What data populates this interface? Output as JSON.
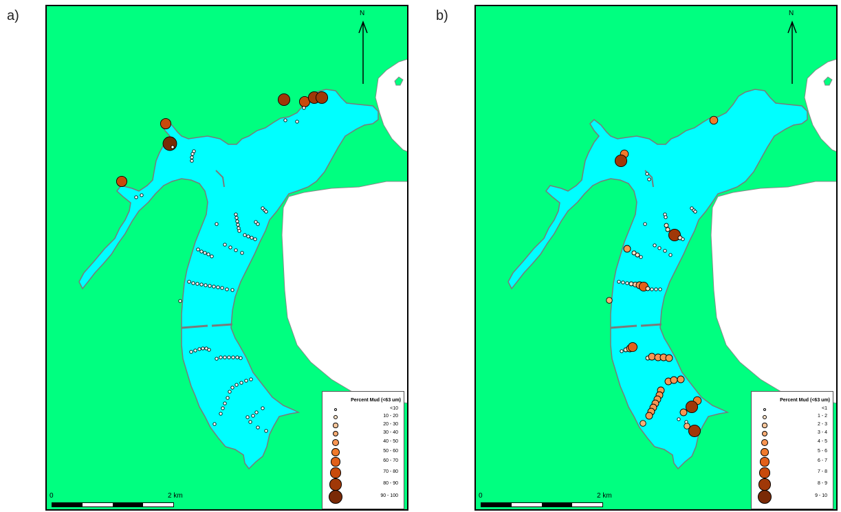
{
  "panels": [
    {
      "letter": "a)",
      "north": "N",
      "scale": {
        "start": "0",
        "end": "2 km"
      },
      "legend": {
        "title": "Percent Mud (<63 um)",
        "classes": [
          "<10",
          "10 - 20",
          "20 - 30",
          "30 - 40",
          "40 - 50",
          "50 - 60",
          "60 - 70",
          "70 - 80",
          "80 - 90",
          "90 - 100"
        ]
      }
    },
    {
      "letter": "b)",
      "north": "N",
      "scale": {
        "start": "0",
        "end": "2 km"
      },
      "legend": {
        "title": "Percent Mud (<63 um)",
        "classes": [
          "<1",
          "1 - 2",
          "2 - 3",
          "3 - 4",
          "4 - 5",
          "5 - 6",
          "6 - 7",
          "7 - 8",
          "8 - 9",
          "9 - 10"
        ]
      }
    }
  ],
  "class_colors": [
    "#ffffff",
    "#fde3c8",
    "#fbc79b",
    "#f9ad75",
    "#f79553",
    "#f07a2c",
    "#e2601a",
    "#c84a0c",
    "#a03808",
    "#7a2a06"
  ],
  "land_color": "#00ff80",
  "water_color": "#00ffff",
  "sea_color": "#ffffff",
  "samples_a": [
    [
      411,
      143,
      8
    ],
    [
      441,
      146,
      7
    ],
    [
      455,
      140,
      8
    ],
    [
      466,
      140,
      8
    ],
    [
      440,
      155,
      0
    ],
    [
      413,
      173,
      0
    ],
    [
      430,
      175,
      0
    ],
    [
      239,
      178,
      7
    ],
    [
      245,
      207,
      9
    ],
    [
      249,
      212,
      0
    ],
    [
      280,
      218,
      0
    ],
    [
      278,
      222,
      0
    ],
    [
      277,
      227,
      0
    ],
    [
      277,
      232,
      0
    ],
    [
      175,
      262,
      7
    ],
    [
      196,
      285,
      0
    ],
    [
      204,
      282,
      0
    ],
    [
      341,
      310,
      0
    ],
    [
      342,
      315,
      0
    ],
    [
      343,
      320,
      0
    ],
    [
      344,
      325,
      0
    ],
    [
      345,
      330,
      0
    ],
    [
      346,
      334,
      0
    ],
    [
      380,
      301,
      0
    ],
    [
      383,
      304,
      0
    ],
    [
      385,
      306,
      0
    ],
    [
      313,
      324,
      0
    ],
    [
      370,
      321,
      0
    ],
    [
      373,
      324,
      0
    ],
    [
      354,
      340,
      0
    ],
    [
      359,
      342,
      0
    ],
    [
      364,
      344,
      0
    ],
    [
      369,
      346,
      0
    ],
    [
      325,
      354,
      0
    ],
    [
      333,
      358,
      0
    ],
    [
      341,
      362,
      0
    ],
    [
      350,
      366,
      0
    ],
    [
      286,
      361,
      0
    ],
    [
      291,
      364,
      0
    ],
    [
      296,
      366,
      0
    ],
    [
      301,
      368,
      0
    ],
    [
      306,
      371,
      0
    ],
    [
      273,
      408,
      0
    ],
    [
      279,
      410,
      0
    ],
    [
      285,
      411,
      0
    ],
    [
      291,
      412,
      0
    ],
    [
      297,
      413,
      0
    ],
    [
      303,
      414,
      0
    ],
    [
      309,
      415,
      0
    ],
    [
      315,
      416,
      0
    ],
    [
      321,
      417,
      0
    ],
    [
      328,
      419,
      0
    ],
    [
      336,
      420,
      0
    ],
    [
      260,
      436,
      0
    ],
    [
      276,
      510,
      0
    ],
    [
      282,
      508,
      0
    ],
    [
      288,
      506,
      0
    ],
    [
      293,
      505,
      0
    ],
    [
      298,
      505,
      0
    ],
    [
      302,
      507,
      0
    ],
    [
      313,
      520,
      0
    ],
    [
      319,
      518,
      0
    ],
    [
      325,
      518,
      0
    ],
    [
      331,
      518,
      0
    ],
    [
      337,
      518,
      0
    ],
    [
      343,
      518,
      0
    ],
    [
      348,
      519,
      0
    ],
    [
      336,
      562,
      0
    ],
    [
      342,
      558,
      0
    ],
    [
      349,
      555,
      0
    ],
    [
      356,
      552,
      0
    ],
    [
      363,
      550,
      0
    ],
    [
      332,
      568,
      0
    ],
    [
      329,
      577,
      0
    ],
    [
      325,
      585,
      0
    ],
    [
      322,
      592,
      0
    ],
    [
      319,
      600,
      0
    ],
    [
      310,
      615,
      0
    ],
    [
      380,
      592,
      0
    ],
    [
      371,
      598,
      0
    ],
    [
      366,
      603,
      0
    ],
    [
      358,
      605,
      0
    ],
    [
      362,
      612,
      0
    ],
    [
      373,
      620,
      0
    ],
    [
      385,
      625,
      0
    ]
  ],
  "samples_b": [
    [
      1036,
      173,
      5
    ],
    [
      906,
      222,
      5
    ],
    [
      901,
      232,
      8
    ],
    [
      939,
      251,
      0
    ],
    [
      942,
      259,
      0
    ],
    [
      1004,
      301,
      0
    ],
    [
      1007,
      304,
      0
    ],
    [
      1009,
      306,
      0
    ],
    [
      965,
      310,
      0
    ],
    [
      966,
      314,
      0
    ],
    [
      936,
      324,
      0
    ],
    [
      967,
      326,
      1
    ],
    [
      969,
      332,
      1
    ],
    [
      975,
      336,
      1
    ],
    [
      979,
      340,
      8
    ],
    [
      987,
      344,
      1
    ],
    [
      991,
      346,
      0
    ],
    [
      950,
      355,
      0
    ],
    [
      957,
      359,
      0
    ],
    [
      965,
      363,
      0
    ],
    [
      973,
      369,
      0
    ],
    [
      910,
      360,
      4
    ],
    [
      920,
      366,
      1
    ],
    [
      925,
      369,
      1
    ],
    [
      930,
      372,
      0
    ],
    [
      898,
      408,
      0
    ],
    [
      904,
      409,
      0
    ],
    [
      910,
      410,
      0
    ],
    [
      916,
      411,
      1
    ],
    [
      922,
      412,
      2
    ],
    [
      928,
      413,
      4
    ],
    [
      934,
      415,
      6
    ],
    [
      940,
      418,
      1
    ],
    [
      946,
      419,
      0
    ],
    [
      952,
      419,
      0
    ],
    [
      958,
      419,
      0
    ],
    [
      884,
      435,
      3
    ],
    [
      902,
      509,
      0
    ],
    [
      908,
      507,
      1
    ],
    [
      914,
      505,
      4
    ],
    [
      918,
      503,
      6
    ],
    [
      940,
      519,
      1
    ],
    [
      946,
      517,
      4
    ],
    [
      955,
      518,
      4
    ],
    [
      963,
      518,
      4
    ],
    [
      971,
      519,
      4
    ],
    [
      970,
      553,
      4
    ],
    [
      978,
      551,
      4
    ],
    [
      988,
      550,
      4
    ],
    [
      959,
      566,
      4
    ],
    [
      957,
      573,
      4
    ],
    [
      954,
      579,
      4
    ],
    [
      951,
      585,
      4
    ],
    [
      948,
      591,
      4
    ],
    [
      945,
      597,
      4
    ],
    [
      942,
      603,
      4
    ],
    [
      933,
      614,
      3
    ],
    [
      1012,
      581,
      5
    ],
    [
      1004,
      590,
      8
    ],
    [
      992,
      598,
      4
    ],
    [
      996,
      612,
      0
    ],
    [
      997,
      618,
      3
    ],
    [
      1008,
      625,
      8
    ],
    [
      985,
      608,
      0
    ]
  ]
}
